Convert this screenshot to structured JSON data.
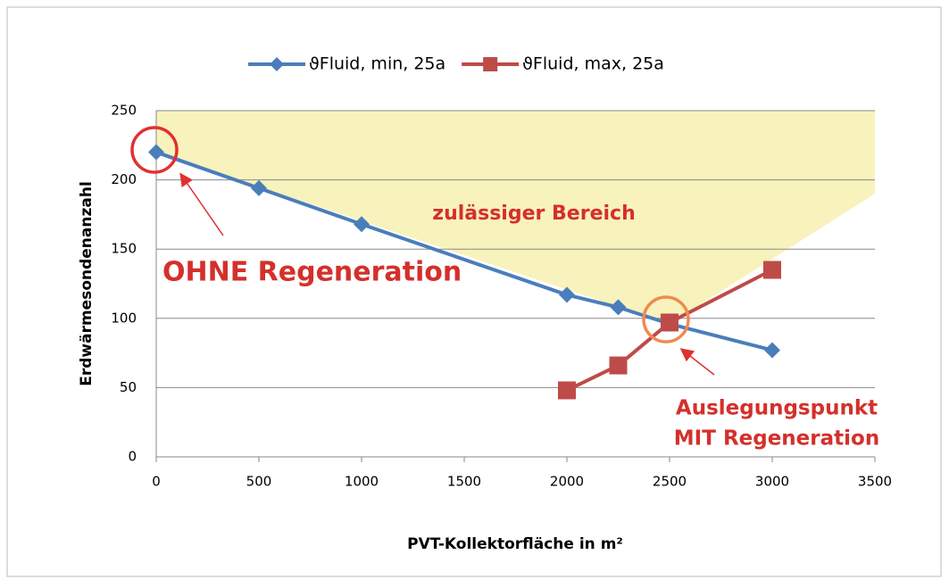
{
  "chart_data": {
    "type": "line",
    "x_label": "PVT-Kollektorfläche in m²",
    "y_label": "Erdwärmesondenanzahl",
    "xlim": [
      0,
      3500
    ],
    "xticks": [
      0,
      500,
      1000,
      1500,
      2000,
      2500,
      3000,
      3500
    ],
    "ylim": [
      0,
      250
    ],
    "yticks": [
      0,
      50,
      100,
      150,
      200,
      250
    ],
    "grid": true,
    "legend": "top",
    "series": [
      {
        "name": "ϑFluid, min, 25a",
        "color": "#4a7ebb",
        "marker": "diamond",
        "x": [
          0,
          500,
          1000,
          2000,
          2250,
          2500,
          3000
        ],
        "values": [
          220,
          194,
          168,
          117,
          108,
          96,
          77
        ]
      },
      {
        "name": "ϑFluid, max, 25a",
        "color": "#be4b48",
        "marker": "square",
        "x": [
          2000,
          2250,
          2500,
          3000
        ],
        "values": [
          48,
          66,
          97,
          135
        ]
      }
    ],
    "region": {
      "label": "zulässiger Bereich",
      "color": "#f7f0b0",
      "x": [
        0,
        3500,
        3500,
        2500,
        0
      ],
      "y": [
        250,
        250,
        190,
        96,
        220
      ]
    },
    "annotations": [
      "OHNE Regeneration",
      "Auslegungspunkt",
      "MIT Regeneration"
    ]
  }
}
